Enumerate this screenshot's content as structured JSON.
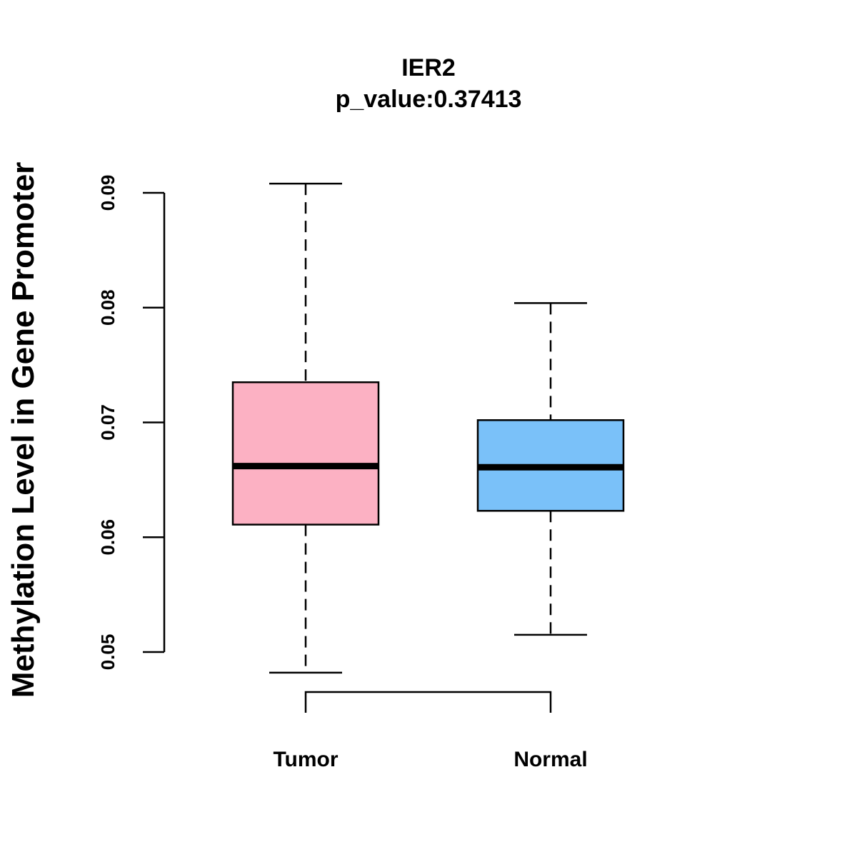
{
  "chart_data": {
    "type": "box",
    "title": "IER2",
    "subtitle": "p_value:0.37413",
    "xlabel": "",
    "ylabel": "Methylation Level in Gene Promoter",
    "ylim": [
      0.05,
      0.09
    ],
    "yticks": [
      0.05,
      0.06,
      0.07,
      0.08,
      0.09
    ],
    "ytick_labels": [
      "0.05",
      "0.06",
      "0.07",
      "0.08",
      "0.09"
    ],
    "categories": [
      "Tumor",
      "Normal"
    ],
    "series": [
      {
        "name": "Tumor",
        "color": "#fcb1c3",
        "whisker_low": 0.0482,
        "q1": 0.0611,
        "median": 0.0662,
        "q3": 0.0735,
        "whisker_high": 0.0908
      },
      {
        "name": "Normal",
        "color": "#7ac1f9",
        "whisker_low": 0.0515,
        "q1": 0.0623,
        "median": 0.0661,
        "q3": 0.0702,
        "whisker_high": 0.0804
      }
    ],
    "comparison_bracket": [
      "Tumor",
      "Normal"
    ]
  }
}
